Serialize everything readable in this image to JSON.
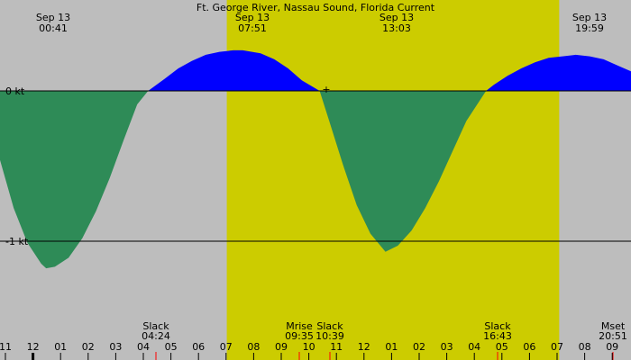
{
  "chart_data": {
    "type": "area",
    "title": "Ft. George River, Nassau Sound, Florida Current",
    "ylabels": [
      "0 kt",
      "-1 kt"
    ],
    "ylim": [
      -1.25,
      0.3
    ],
    "xlim_hours": [
      -1.0,
      22.0
    ],
    "daylight": {
      "start": "07:16",
      "end": "19:23"
    },
    "colors": {
      "background": "#bdbdbd",
      "daylight": "#cccc00",
      "flood": "#0000ff",
      "ebb": "#2e8b57"
    },
    "top_labels": [
      {
        "date": "Sep 13",
        "time": "00:41"
      },
      {
        "date": "Sep 13",
        "time": "07:51"
      },
      {
        "date": "Sep 13",
        "time": "13:03"
      },
      {
        "date": "Sep 13",
        "time": "19:59"
      }
    ],
    "series": [
      {
        "values": [
          {
            "time": "-01:00",
            "kt": -0.46
          },
          {
            "time": "-00:30",
            "kt": -0.78
          },
          {
            "time": "00:00",
            "kt": -1.01
          },
          {
            "time": "00:30",
            "kt": -1.15
          },
          {
            "time": "00:41",
            "kt": -1.18
          },
          {
            "time": "01:00",
            "kt": -1.17
          },
          {
            "time": "01:30",
            "kt": -1.11
          },
          {
            "time": "02:00",
            "kt": -0.98
          },
          {
            "time": "02:30",
            "kt": -0.8
          },
          {
            "time": "03:00",
            "kt": -0.58
          },
          {
            "time": "03:30",
            "kt": -0.33
          },
          {
            "time": "04:00",
            "kt": -0.09
          },
          {
            "time": "04:24",
            "kt": 0.0
          },
          {
            "time": "05:00",
            "kt": 0.08
          },
          {
            "time": "05:30",
            "kt": 0.15
          },
          {
            "time": "06:00",
            "kt": 0.2
          },
          {
            "time": "06:30",
            "kt": 0.24
          },
          {
            "time": "07:00",
            "kt": 0.26
          },
          {
            "time": "07:30",
            "kt": 0.27
          },
          {
            "time": "07:51",
            "kt": 0.27
          },
          {
            "time": "08:30",
            "kt": 0.25
          },
          {
            "time": "09:00",
            "kt": 0.21
          },
          {
            "time": "09:30",
            "kt": 0.15
          },
          {
            "time": "10:00",
            "kt": 0.07
          },
          {
            "time": "10:39",
            "kt": 0.0
          },
          {
            "time": "11:00",
            "kt": -0.2
          },
          {
            "time": "11:30",
            "kt": -0.49
          },
          {
            "time": "12:00",
            "kt": -0.76
          },
          {
            "time": "12:30",
            "kt": -0.95
          },
          {
            "time": "13:03",
            "kt": -1.07
          },
          {
            "time": "13:30",
            "kt": -1.03
          },
          {
            "time": "14:00",
            "kt": -0.93
          },
          {
            "time": "14:30",
            "kt": -0.78
          },
          {
            "time": "15:00",
            "kt": -0.6
          },
          {
            "time": "15:30",
            "kt": -0.4
          },
          {
            "time": "16:00",
            "kt": -0.2
          },
          {
            "time": "16:43",
            "kt": 0.0
          },
          {
            "time": "17:00",
            "kt": 0.04
          },
          {
            "time": "17:30",
            "kt": 0.1
          },
          {
            "time": "18:00",
            "kt": 0.15
          },
          {
            "time": "18:30",
            "kt": 0.19
          },
          {
            "time": "19:00",
            "kt": 0.22
          },
          {
            "time": "19:30",
            "kt": 0.23
          },
          {
            "time": "19:59",
            "kt": 0.24
          },
          {
            "time": "20:30",
            "kt": 0.23
          },
          {
            "time": "21:00",
            "kt": 0.21
          },
          {
            "time": "21:30",
            "kt": 0.17
          },
          {
            "time": "22:00",
            "kt": 0.13
          }
        ]
      }
    ],
    "events": [
      {
        "label": "Slack",
        "time": "04:24"
      },
      {
        "label": "Mrise",
        "time": "09:35"
      },
      {
        "label": "Slack",
        "time": "10:39"
      },
      {
        "label": "Slack",
        "time": "16:43"
      },
      {
        "label": "Mset",
        "time": "20:51"
      }
    ],
    "x_ticks": [
      "11",
      "12",
      "01",
      "02",
      "03",
      "04",
      "05",
      "06",
      "07",
      "08",
      "09",
      "10",
      "11",
      "12",
      "01",
      "02",
      "03",
      "04",
      "05",
      "06",
      "07",
      "08",
      "09"
    ]
  }
}
